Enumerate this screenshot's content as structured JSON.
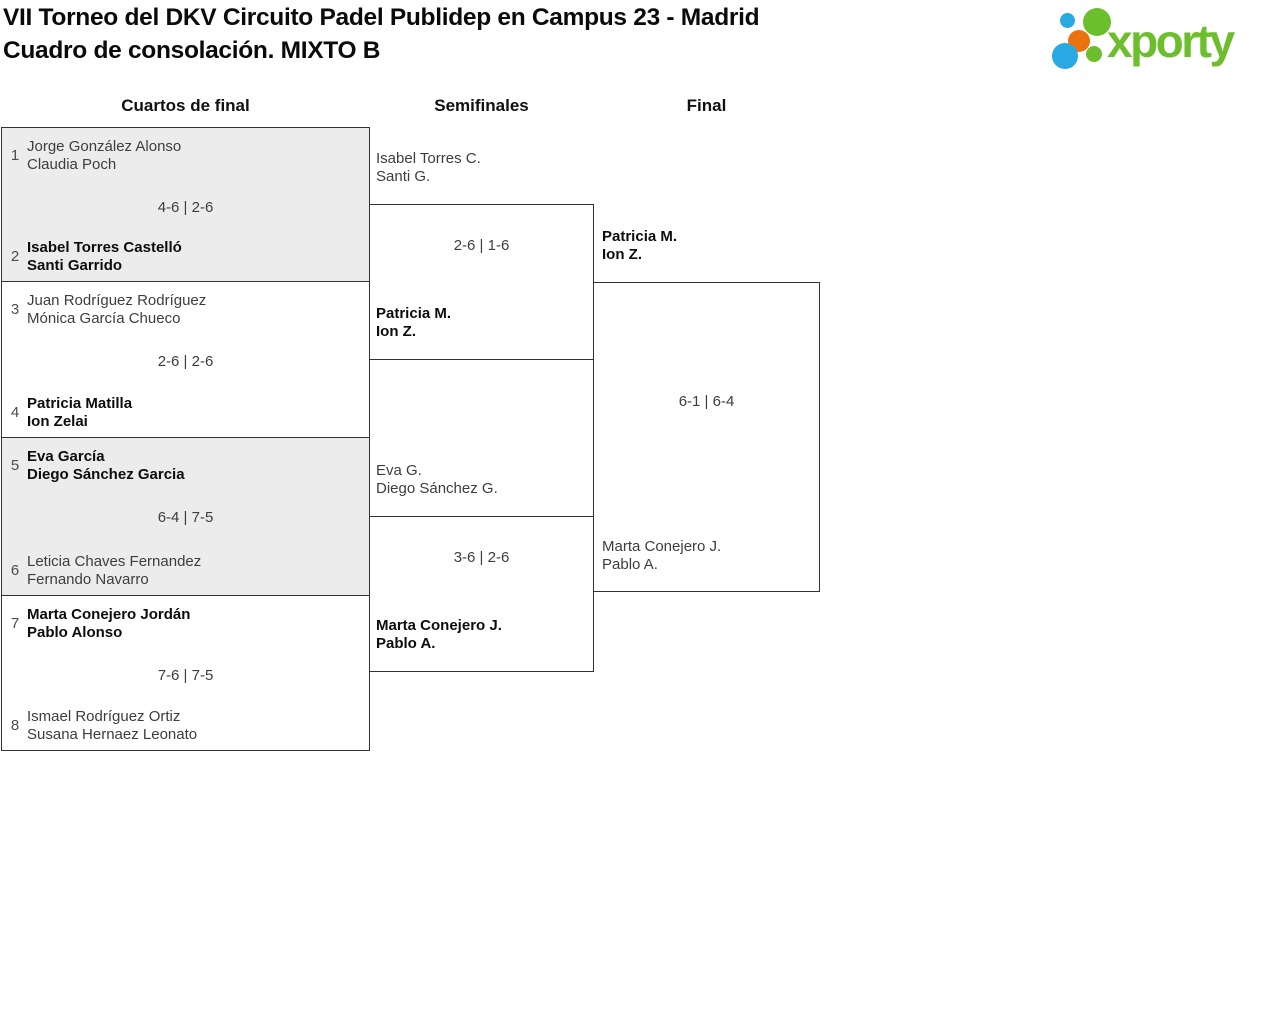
{
  "title": {
    "line1": "VII Torneo del DKV Circuito Padel Publidep en Campus 23 - Madrid",
    "line2": "Cuadro de consolación. MIXTO B"
  },
  "logo": {
    "text": "xporty",
    "colors": {
      "green": "#6cbe2d",
      "blue": "#29a9e1",
      "orange": "#e9730f"
    }
  },
  "round_headers": [
    "Cuartos de final",
    "Semifinales",
    "Final"
  ],
  "bracket": {
    "quarterfinals": [
      {
        "seed_top": "1",
        "team_top_line1": "Jorge González Alonso",
        "team_top_line2": "Claudia Poch",
        "score": "4-6 | 2-6",
        "seed_bottom": "2",
        "team_bottom_line1": "Isabel Torres Castelló",
        "team_bottom_line2": "Santi Garrido",
        "winner": "bottom"
      },
      {
        "seed_top": "3",
        "team_top_line1": "Juan Rodríguez Rodríguez",
        "team_top_line2": "Mónica García Chueco",
        "score": "2-6 | 2-6",
        "seed_bottom": "4",
        "team_bottom_line1": "Patricia Matilla",
        "team_bottom_line2": "Ion Zelai",
        "winner": "bottom"
      },
      {
        "seed_top": "5",
        "team_top_line1": "Eva García",
        "team_top_line2": "Diego Sánchez Garcia",
        "score": "6-4 | 7-5",
        "seed_bottom": "6",
        "team_bottom_line1": "Leticia Chaves Fernandez",
        "team_bottom_line2": "Fernando Navarro",
        "winner": "top"
      },
      {
        "seed_top": "7",
        "team_top_line1": "Marta Conejero Jordán",
        "team_top_line2": "Pablo Alonso",
        "score": "7-6 | 7-5",
        "seed_bottom": "8",
        "team_bottom_line1": "Ismael Rodríguez Ortiz",
        "team_bottom_line2": "Susana Hernaez Leonato",
        "winner": "top"
      }
    ],
    "semifinals": [
      {
        "team_top_line1": "Isabel Torres C.",
        "team_top_line2": "Santi G.",
        "score": "2-6 | 1-6",
        "team_bottom_line1": "Patricia M.",
        "team_bottom_line2": "Ion Z.",
        "winner": "bottom"
      },
      {
        "team_top_line1": "Eva G.",
        "team_top_line2": "Diego Sánchez G.",
        "score": "3-6 | 2-6",
        "team_bottom_line1": "Marta Conejero J.",
        "team_bottom_line2": "Pablo A.",
        "winner": "bottom"
      }
    ],
    "final": {
      "team_top_line1": "Patricia M.",
      "team_top_line2": "Ion Z.",
      "score": "6-1 | 6-4",
      "team_bottom_line1": "Marta Conejero J.",
      "team_bottom_line2": "Pablo A.",
      "winner": "top"
    }
  }
}
